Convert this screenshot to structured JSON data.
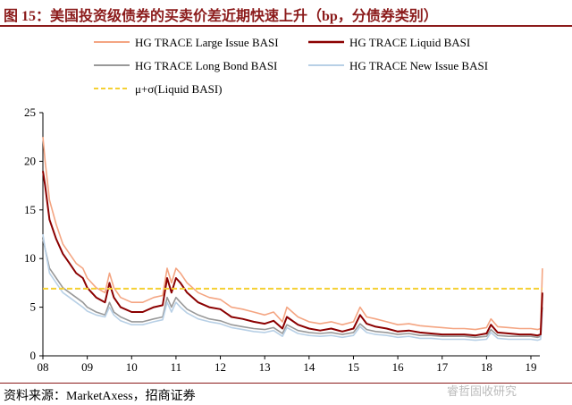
{
  "title": "图 15：美国投资级债券的买卖价差近期快速上升（bp，分债券类别）",
  "source": "资料来源：MarketAxess，招商证券",
  "watermark": "睿哲固收研究",
  "chart_data": {
    "type": "line",
    "title": "图 15：美国投资级债券的买卖价差近期快速上升（bp，分债券类别）",
    "xlabel": "",
    "ylabel": "",
    "xlim": [
      2008,
      2019.35
    ],
    "ylim": [
      0,
      25
    ],
    "xticks": [
      "08",
      "09",
      "10",
      "11",
      "12",
      "13",
      "14",
      "15",
      "16",
      "17",
      "18",
      "19"
    ],
    "yticks": [
      "0",
      "5",
      "10",
      "15",
      "20",
      "25"
    ],
    "legend_position": "top",
    "x": [
      2008,
      2008.05,
      2008.15,
      2008.3,
      2008.45,
      2008.6,
      2008.75,
      2008.9,
      2009,
      2009.2,
      2009.4,
      2009.5,
      2009.6,
      2009.75,
      2010,
      2010.25,
      2010.5,
      2010.7,
      2010.8,
      2010.9,
      2011,
      2011.1,
      2011.25,
      2011.5,
      2011.75,
      2012,
      2012.25,
      2012.5,
      2012.75,
      2013,
      2013.2,
      2013.4,
      2013.5,
      2013.75,
      2014,
      2014.25,
      2014.5,
      2014.75,
      2015,
      2015.15,
      2015.3,
      2015.5,
      2015.75,
      2016,
      2016.25,
      2016.5,
      2016.75,
      2017,
      2017.25,
      2017.5,
      2017.75,
      2018,
      2018.1,
      2018.25,
      2018.5,
      2018.75,
      2019,
      2019.15,
      2019.22,
      2019.26
    ],
    "series": [
      {
        "name": "HG TRACE Large Issue BASI",
        "color": "#f4a582",
        "values": [
          22.5,
          20,
          16,
          13.5,
          11.5,
          10.5,
          9.5,
          9,
          8,
          7,
          6.5,
          8.5,
          7,
          6,
          5.5,
          5.5,
          6,
          6.2,
          9,
          7.5,
          9,
          8.5,
          7.5,
          6.5,
          6,
          5.8,
          5,
          4.8,
          4.5,
          4.2,
          4.5,
          3.5,
          5,
          4,
          3.5,
          3.3,
          3.5,
          3.2,
          3.5,
          5,
          4,
          3.8,
          3.5,
          3.2,
          3.3,
          3.1,
          3,
          2.9,
          2.8,
          2.8,
          2.7,
          2.9,
          3.8,
          3,
          2.9,
          2.8,
          2.8,
          2.7,
          2.8,
          9
        ]
      },
      {
        "name": "HG TRACE Liquid BASI",
        "color": "#8b0000",
        "values": [
          19,
          17.5,
          14,
          12,
          10.5,
          9.5,
          8.5,
          8,
          7,
          6,
          5.5,
          7.5,
          6,
          5,
          4.5,
          4.5,
          5,
          5.2,
          8,
          6.5,
          8,
          7.5,
          6.5,
          5.5,
          5,
          4.8,
          4,
          3.8,
          3.5,
          3.3,
          3.6,
          2.8,
          4,
          3.2,
          2.8,
          2.6,
          2.8,
          2.5,
          2.8,
          4.2,
          3.3,
          3,
          2.8,
          2.5,
          2.6,
          2.4,
          2.3,
          2.2,
          2.2,
          2.2,
          2.1,
          2.3,
          3.2,
          2.4,
          2.3,
          2.2,
          2.2,
          2.1,
          2.2,
          6.5
        ]
      },
      {
        "name": "HG TRACE Long Bond BASI",
        "color": "#999999",
        "values": [
          12,
          11,
          9,
          8,
          7,
          6.5,
          6,
          5.5,
          5,
          4.5,
          4.2,
          5.5,
          4.5,
          4,
          3.5,
          3.5,
          3.8,
          4,
          6,
          5,
          6,
          5.5,
          4.8,
          4.2,
          3.8,
          3.6,
          3.2,
          3,
          2.8,
          2.7,
          2.9,
          2.3,
          3.2,
          2.6,
          2.4,
          2.3,
          2.4,
          2.2,
          2.4,
          3.3,
          2.7,
          2.5,
          2.4,
          2.2,
          2.3,
          2.1,
          2.1,
          2,
          2,
          2,
          1.9,
          2,
          2.7,
          2.1,
          2,
          2,
          2,
          1.9,
          2,
          5
        ]
      },
      {
        "name": "HG TRACE New Issue BASI",
        "color": "#b8d0e6",
        "values": [
          12.5,
          11,
          8.5,
          7.5,
          6.5,
          6,
          5.5,
          5,
          4.6,
          4.2,
          4,
          5,
          4.2,
          3.6,
          3.2,
          3.2,
          3.5,
          3.7,
          5.5,
          4.5,
          5.5,
          5,
          4.4,
          3.8,
          3.5,
          3.3,
          2.9,
          2.7,
          2.5,
          2.4,
          2.6,
          2,
          2.9,
          2.3,
          2.1,
          2,
          2.1,
          1.9,
          2.1,
          3,
          2.4,
          2.2,
          2.1,
          1.9,
          2,
          1.8,
          1.8,
          1.7,
          1.7,
          1.7,
          1.6,
          1.7,
          2.4,
          1.8,
          1.7,
          1.7,
          1.7,
          1.6,
          1.7,
          4.5
        ]
      }
    ],
    "reference_line": {
      "name": "μ+σ(Liquid BASI)",
      "value": 6.9,
      "color": "#f5d033"
    }
  }
}
